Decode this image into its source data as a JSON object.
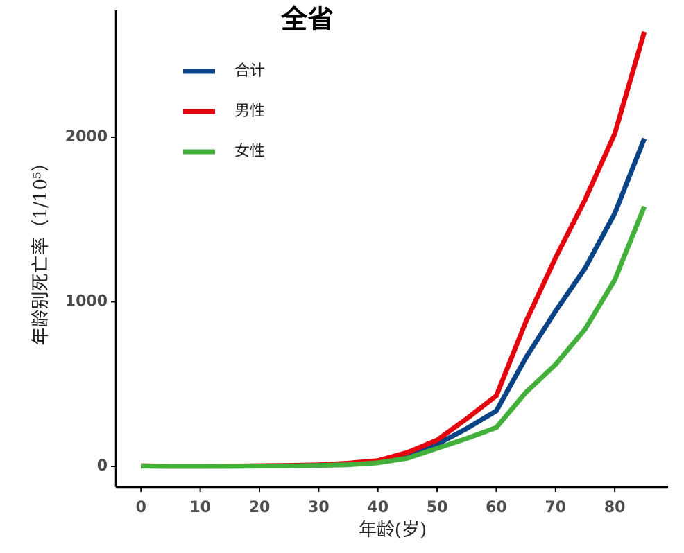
{
  "chart_data": {
    "type": "line",
    "title": "全省",
    "x_label": "年龄(岁)",
    "y_label": "年龄别死亡率（1/10⁵）",
    "x": [
      0,
      5,
      10,
      15,
      20,
      25,
      30,
      35,
      40,
      45,
      50,
      55,
      60,
      65,
      70,
      75,
      80,
      85
    ],
    "series": [
      {
        "name": "合计",
        "color": "#0a4487",
        "values": [
          3,
          1,
          1,
          2,
          3,
          4,
          8,
          15,
          28,
          65,
          135,
          230,
          337,
          661,
          943,
          1204,
          1537,
          1992
        ]
      },
      {
        "name": "男性",
        "color": "#e3060f",
        "values": [
          4,
          1,
          1,
          2,
          4,
          6,
          10,
          20,
          35,
          85,
          160,
          290,
          429,
          880,
          1267,
          1621,
          2021,
          2640
        ]
      },
      {
        "name": "女性",
        "color": "#43b03c",
        "values": [
          2,
          1,
          1,
          1,
          2,
          3,
          6,
          10,
          22,
          50,
          110,
          170,
          236,
          450,
          619,
          834,
          1133,
          1579
        ]
      }
    ],
    "xlim": [
      -4.25,
      89
    ],
    "xticks": [
      0,
      10,
      20,
      30,
      40,
      50,
      60,
      70,
      80
    ],
    "ylim": [
      -126,
      2770
    ],
    "yticks": [
      0,
      1000,
      2000
    ],
    "grid": false,
    "legend": "top-left"
  }
}
